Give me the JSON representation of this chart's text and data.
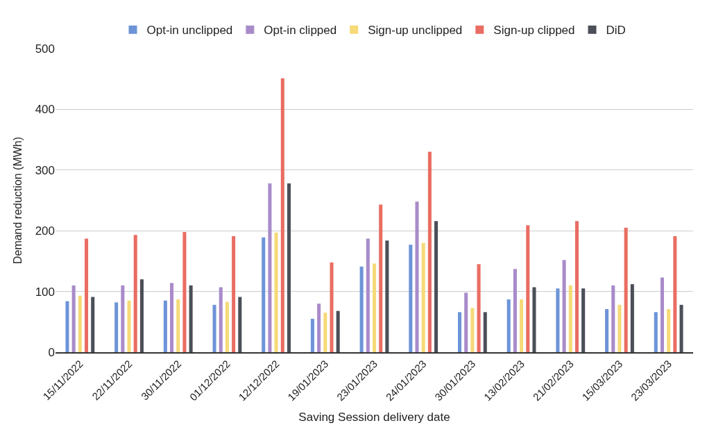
{
  "chart_data": {
    "type": "bar",
    "xlabel": "Saving Session delivery date",
    "ylabel": "Demand reduction (MWh)",
    "categories": [
      "15/11/2022",
      "22/11/2022",
      "30/11/2022",
      "01/12/2022",
      "12/12/2022",
      "19/01/2023",
      "23/01/2023",
      "24/01/2023",
      "30/01/2023",
      "13/02/2023",
      "21/02/2023",
      "15/03/2023",
      "23/03/2023"
    ],
    "series": [
      {
        "name": "Opt-in unclipped",
        "color": "#6d94d8",
        "values": [
          84,
          82,
          85,
          78,
          189,
          55,
          141,
          177,
          66,
          87,
          105,
          71,
          66
        ]
      },
      {
        "name": "Opt-in clipped",
        "color": "#a98bca",
        "values": [
          110,
          110,
          114,
          107,
          278,
          80,
          187,
          248,
          98,
          137,
          152,
          110,
          123
        ]
      },
      {
        "name": "Sign-up unclipped",
        "color": "#f6da78",
        "values": [
          93,
          85,
          87,
          83,
          197,
          65,
          146,
          180,
          73,
          87,
          110,
          78,
          71
        ]
      },
      {
        "name": "Sign-up clipped",
        "color": "#e96d62",
        "values": [
          187,
          193,
          198,
          191,
          451,
          148,
          243,
          330,
          145,
          209,
          216,
          205,
          191
        ]
      },
      {
        "name": "DiD",
        "color": "#4b4f58",
        "values": [
          91,
          120,
          110,
          91,
          278,
          68,
          184,
          216,
          66,
          107,
          105,
          112,
          78
        ]
      }
    ],
    "ylim": [
      0,
      500
    ],
    "yticks": [
      0,
      100,
      200,
      300,
      400,
      500
    ],
    "grid": "y",
    "legend": "top"
  }
}
